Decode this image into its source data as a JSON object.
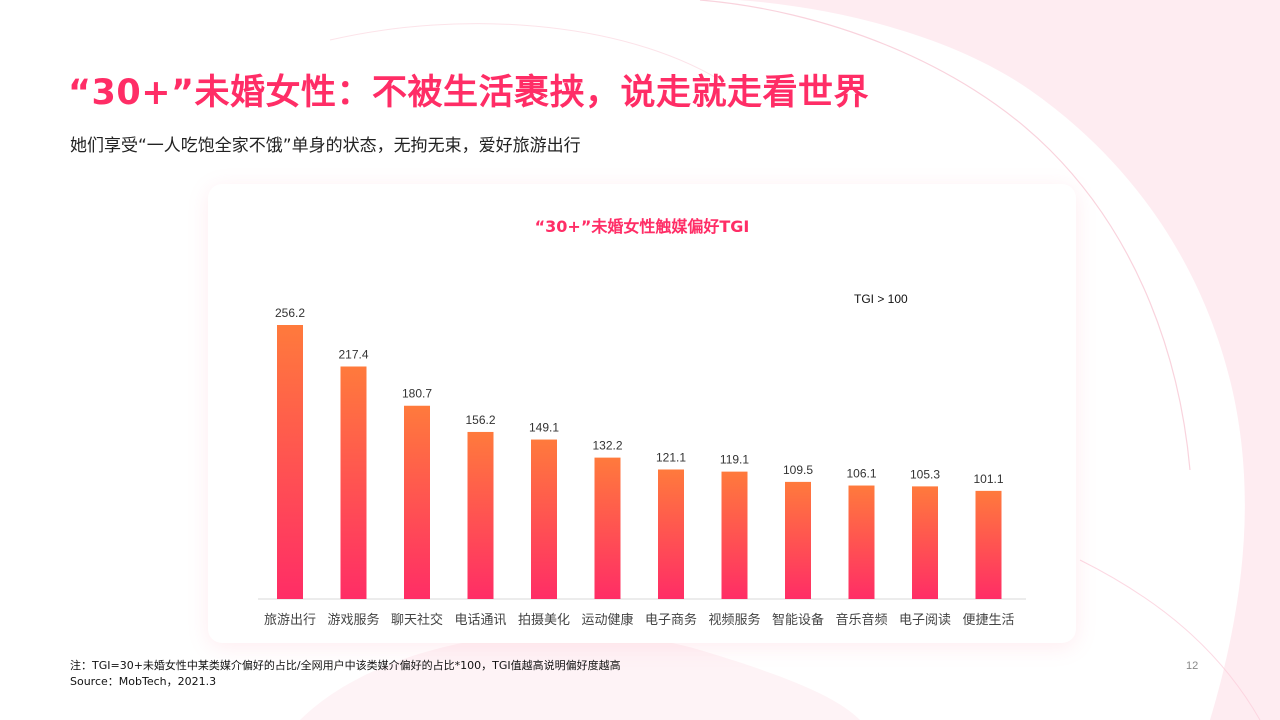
{
  "header": {
    "title": "“30+”未婚女性：不被生活裹挟，说走就走看世界",
    "subtitle": "她们享受“一人吃饱全家不饿”单身的状态，无拘无束，爱好旅游出行"
  },
  "chart_data": {
    "type": "bar",
    "title": "“30+”未婚女性触媒偏好TGI",
    "annotation": "TGI > 100",
    "categories": [
      "旅游出行",
      "游戏服务",
      "聊天社交",
      "电话通讯",
      "拍摄美化",
      "运动健康",
      "电子商务",
      "视频服务",
      "智能设备",
      "音乐音频",
      "电子阅读",
      "便捷生活"
    ],
    "values": [
      256.2,
      217.4,
      180.7,
      156.2,
      149.1,
      132.2,
      121.1,
      119.1,
      109.5,
      106.1,
      105.3,
      101.1
    ],
    "value_labels": [
      "256.2",
      "217.4",
      "180.7",
      "156.2",
      "149.1",
      "132.2",
      "121.1",
      "119.1",
      "109.5",
      "106.1",
      "105.3",
      "101.1"
    ],
    "xlabel": "",
    "ylabel": "",
    "ylim": [
      0,
      256.2
    ],
    "grid": false,
    "legend": "none"
  },
  "colors": {
    "accent": "#ff2d66",
    "bar_top": "#ff7a3c",
    "bar_bottom": "#ff2d66",
    "axis": "#d9d9d9"
  },
  "footer": {
    "note": "注：TGI=30+未婚女性中某类媒介偏好的占比/全网用户中该类媒介偏好的占比*100，TGI值越高说明偏好度越高",
    "source": "Source：MobTech，2021.3",
    "page_number": "12"
  }
}
